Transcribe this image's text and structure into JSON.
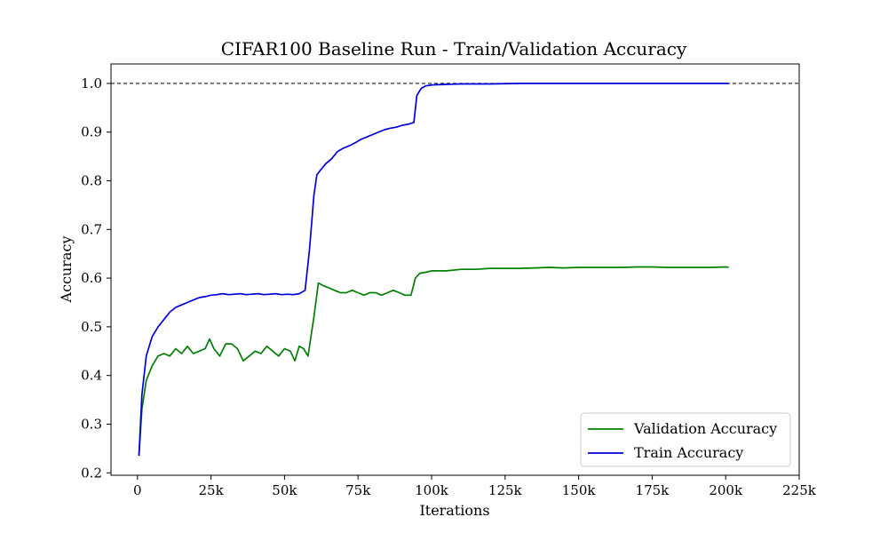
{
  "chart_data": {
    "type": "line",
    "title": "CIFAR100 Baseline Run - Train/Validation Accuracy",
    "xlabel": "Iterations",
    "ylabel": "Accuracy",
    "xlim": [
      -9000,
      225000
    ],
    "ylim": [
      0.195,
      1.04
    ],
    "xticks": [
      0,
      25000,
      50000,
      75000,
      100000,
      125000,
      150000,
      175000,
      200000,
      225000
    ],
    "xtick_labels": [
      "0",
      "25k",
      "50k",
      "75k",
      "100k",
      "125k",
      "150k",
      "175k",
      "200k",
      "225k"
    ],
    "yticks": [
      0.2,
      0.3,
      0.4,
      0.5,
      0.6,
      0.7,
      0.8,
      0.9,
      1.0
    ],
    "ytick_labels": [
      "0.2",
      "0.3",
      "0.4",
      "0.5",
      "0.6",
      "0.7",
      "0.8",
      "0.9",
      "1.0"
    ],
    "reference_line": {
      "y": 1.0,
      "color": "#000000",
      "style": "dashed"
    },
    "legend_position": "bottom-right",
    "grid": false,
    "series": [
      {
        "name": "Validation Accuracy",
        "color": "#008000",
        "x": [
          500,
          1500,
          3000,
          5000,
          7000,
          9000,
          11000,
          13000,
          15000,
          17000,
          19000,
          21000,
          23000,
          24500,
          26000,
          28000,
          30000,
          32000,
          34000,
          36000,
          38000,
          40000,
          42000,
          44000,
          46000,
          48000,
          50000,
          52000,
          53500,
          55000,
          56500,
          58000,
          60000,
          61500,
          63000,
          65000,
          67000,
          69000,
          71000,
          73000,
          75000,
          77000,
          79000,
          81000,
          83000,
          85000,
          87000,
          89000,
          91000,
          93000,
          94500,
          96000,
          98000,
          100000,
          105000,
          110000,
          115000,
          120000,
          125000,
          130000,
          135000,
          140000,
          145000,
          150000,
          155000,
          160000,
          165000,
          170000,
          175000,
          180000,
          185000,
          190000,
          195000,
          200000,
          201000
        ],
        "y": [
          0.235,
          0.33,
          0.39,
          0.42,
          0.44,
          0.445,
          0.44,
          0.455,
          0.445,
          0.46,
          0.445,
          0.45,
          0.455,
          0.475,
          0.455,
          0.44,
          0.465,
          0.465,
          0.455,
          0.43,
          0.44,
          0.45,
          0.445,
          0.46,
          0.45,
          0.44,
          0.455,
          0.45,
          0.43,
          0.46,
          0.455,
          0.44,
          0.52,
          0.59,
          0.585,
          0.58,
          0.575,
          0.57,
          0.57,
          0.575,
          0.57,
          0.565,
          0.57,
          0.57,
          0.565,
          0.57,
          0.575,
          0.57,
          0.565,
          0.565,
          0.6,
          0.61,
          0.612,
          0.615,
          0.615,
          0.618,
          0.618,
          0.62,
          0.62,
          0.62,
          0.621,
          0.622,
          0.621,
          0.622,
          0.622,
          0.622,
          0.622,
          0.623,
          0.623,
          0.622,
          0.622,
          0.622,
          0.622,
          0.623,
          0.622
        ]
      },
      {
        "name": "Train Accuracy",
        "color": "#0000dd",
        "x": [
          500,
          1500,
          3000,
          5000,
          7000,
          9000,
          11000,
          13000,
          15000,
          17000,
          19000,
          21000,
          23000,
          25000,
          27000,
          29000,
          31000,
          33000,
          35000,
          37000,
          39000,
          41000,
          43000,
          45000,
          47000,
          49000,
          51000,
          53000,
          55000,
          57000,
          58500,
          60000,
          61000,
          62000,
          64000,
          66000,
          68000,
          70000,
          72000,
          74000,
          76000,
          78000,
          80000,
          82000,
          84000,
          86000,
          88000,
          90000,
          92000,
          94000,
          95000,
          96500,
          98000,
          100000,
          105000,
          110000,
          120000,
          130000,
          140000,
          150000,
          160000,
          170000,
          180000,
          190000,
          200000,
          201000
        ],
        "y": [
          0.235,
          0.36,
          0.44,
          0.48,
          0.5,
          0.515,
          0.53,
          0.54,
          0.545,
          0.55,
          0.555,
          0.56,
          0.562,
          0.565,
          0.566,
          0.568,
          0.566,
          0.567,
          0.568,
          0.566,
          0.567,
          0.568,
          0.566,
          0.567,
          0.568,
          0.566,
          0.567,
          0.566,
          0.568,
          0.575,
          0.66,
          0.77,
          0.812,
          0.82,
          0.835,
          0.845,
          0.86,
          0.867,
          0.872,
          0.878,
          0.885,
          0.89,
          0.895,
          0.9,
          0.905,
          0.908,
          0.91,
          0.914,
          0.916,
          0.92,
          0.975,
          0.99,
          0.995,
          0.997,
          0.998,
          0.999,
          0.999,
          1.0,
          1.0,
          1.0,
          1.0,
          1.0,
          1.0,
          1.0,
          1.0,
          1.0
        ]
      }
    ]
  }
}
